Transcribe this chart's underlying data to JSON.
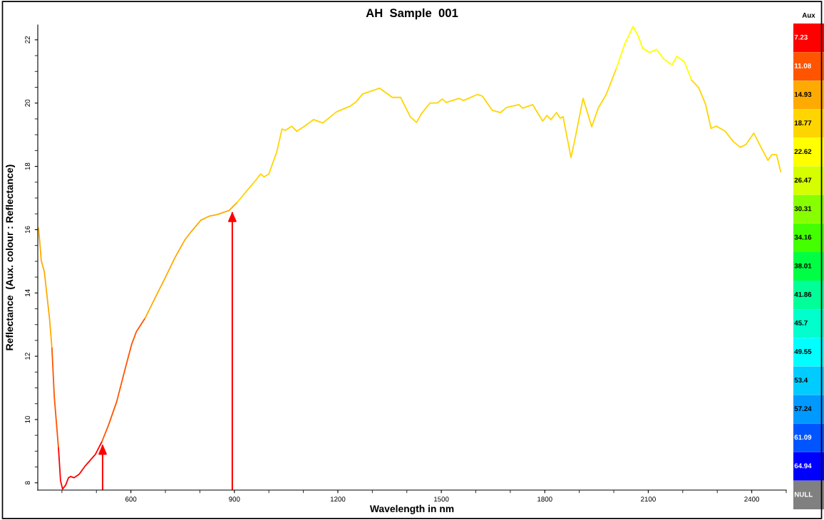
{
  "chart_data": {
    "type": "line",
    "title": "AH  Sample  001",
    "xlabel": "Wavelength in nm",
    "ylabel": "Reflectance  (Aux. colour : Reflectance)",
    "clabel": "Aux",
    "series": [
      {
        "color": "#ffaa00",
        "x": [
          332,
          336,
          340,
          349,
          364,
          371
        ],
        "values": [
          16.05,
          15.58,
          15.03,
          14.67,
          13.2,
          12.26
        ]
      },
      {
        "color": "#ff5500",
        "x": [
          371,
          378,
          390
        ],
        "values": [
          12.26,
          10.7,
          9.1
        ]
      },
      {
        "color": "#ff0000",
        "x": [
          390,
          396,
          402,
          411,
          419,
          425,
          435,
          450,
          468,
          497,
          516
        ],
        "values": [
          9.1,
          8.07,
          7.8,
          7.93,
          8.16,
          8.2,
          8.16,
          8.27,
          8.54,
          8.9,
          9.3
        ]
      },
      {
        "color": "#ff5500",
        "x": [
          516,
          536,
          559,
          584,
          602,
          616,
          641
        ],
        "values": [
          9.3,
          9.85,
          10.57,
          11.63,
          12.37,
          12.78,
          13.2
        ]
      },
      {
        "color": "#ffaa00",
        "x": [
          641,
          670,
          699,
          727,
          756,
          775,
          803,
          828,
          851,
          885,
          908
        ],
        "values": [
          13.2,
          13.84,
          14.47,
          15.1,
          15.67,
          15.94,
          16.3,
          16.43,
          16.48,
          16.61,
          16.86
        ]
      },
      {
        "color": "#ffd500",
        "x": [
          908,
          937,
          962,
          976,
          986,
          1000,
          1023,
          1038,
          1048,
          1066,
          1081,
          1101,
          1130,
          1156,
          1196,
          1235,
          1253,
          1272,
          1321,
          1358,
          1382,
          1410,
          1428,
          1442,
          1467,
          1488,
          1503,
          1514,
          1551,
          1564,
          1604,
          1619,
          1648,
          1672,
          1689,
          1725,
          1736,
          1765,
          1794,
          1806,
          1818,
          1834,
          1845,
          1853,
          1876,
          1886,
          1911,
          1936,
          1955,
          1978,
          2007
        ],
        "values": [
          16.86,
          17.24,
          17.56,
          17.76,
          17.67,
          17.76,
          18.46,
          19.18,
          19.14,
          19.27,
          19.11,
          19.25,
          19.48,
          19.37,
          19.72,
          19.9,
          20.04,
          20.29,
          20.47,
          20.18,
          20.18,
          19.57,
          19.39,
          19.66,
          20.0,
          20.0,
          20.13,
          20.02,
          20.15,
          20.08,
          20.27,
          20.22,
          19.77,
          19.7,
          19.86,
          19.95,
          19.84,
          19.95,
          19.43,
          19.61,
          19.48,
          19.7,
          19.52,
          19.57,
          18.28,
          18.78,
          20.15,
          19.25,
          19.84,
          20.27,
          21.08
        ]
      },
      {
        "color": "#ffff00",
        "x": [
          2007,
          2032,
          2056,
          2070,
          2084,
          2104,
          2124,
          2145,
          2169,
          2183,
          2205,
          2226
        ],
        "values": [
          21.08,
          21.87,
          22.42,
          22.14,
          21.73,
          21.6,
          21.7,
          21.39,
          21.21,
          21.48,
          21.3,
          20.72
        ]
      },
      {
        "color": "#ffd500",
        "x": [
          2226,
          2246,
          2266,
          2282,
          2297,
          2322,
          2347,
          2367,
          2383,
          2406,
          2427,
          2447,
          2458,
          2472,
          2484
        ],
        "values": [
          20.72,
          20.49,
          19.97,
          19.2,
          19.27,
          19.12,
          18.78,
          18.6,
          18.69,
          19.05,
          18.6,
          18.19,
          18.37,
          18.37,
          17.83
        ]
      }
    ],
    "xlim": [
      330,
      2500
    ],
    "xticks": [
      600,
      900,
      1200,
      1500,
      1800,
      2100,
      2400
    ],
    "ylim": [
      7.77,
      22.47
    ],
    "yticks": [
      8,
      10,
      12,
      14,
      16,
      18,
      20,
      22
    ],
    "clim": [
      5.305,
      70.715
    ],
    "cticks": [
      7.23,
      11.08,
      14.93,
      18.77,
      22.62,
      26.47,
      30.31,
      34.16,
      38.01,
      41.86,
      45.7,
      49.55,
      53.4,
      57.24,
      61.09,
      64.94,
      {
        "value": 68.79,
        "label": "NULL"
      }
    ],
    "ref_lines": [
      {
        "axis": "x",
        "value": 518,
        "color": "#ff0000"
      },
      {
        "axis": "x",
        "value": 894,
        "color": "#ff0000"
      }
    ],
    "grid": false,
    "legend": false
  }
}
